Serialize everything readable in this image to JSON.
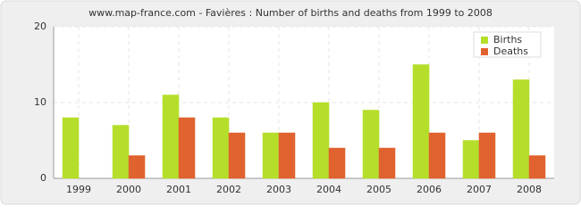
{
  "chart_data": {
    "type": "bar",
    "title": "www.map-france.com - Favières : Number of births and deaths from 1999 to 2008",
    "categories": [
      "1999",
      "2000",
      "2001",
      "2002",
      "2003",
      "2004",
      "2005",
      "2006",
      "2007",
      "2008"
    ],
    "series": [
      {
        "name": "Births",
        "color": "#b5de2b",
        "values": [
          8,
          7,
          11,
          8,
          6,
          10,
          9,
          15,
          5,
          13
        ]
      },
      {
        "name": "Deaths",
        "color": "#e0632f",
        "values": [
          0,
          3,
          8,
          6,
          6,
          4,
          4,
          6,
          6,
          3
        ]
      }
    ],
    "ylim": [
      0,
      20
    ],
    "yticks": [
      0,
      10,
      20
    ],
    "grid": true,
    "legend": "top-right"
  }
}
